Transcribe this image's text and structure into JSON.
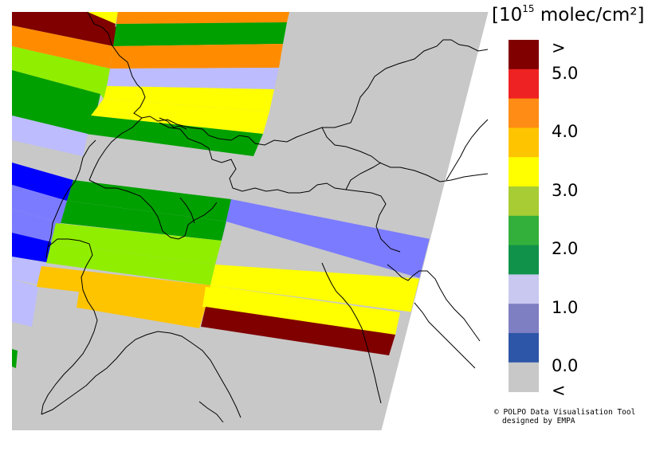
{
  "legend": {
    "title_prefix": "[10",
    "title_exponent": "15",
    "title_suffix": " molec/cm²]",
    "classes": [
      {
        "label": ">",
        "color": "#800000"
      },
      {
        "label": "",
        "color": "#ee2222"
      },
      {
        "label": "",
        "color": "#ff8c14"
      },
      {
        "label": "",
        "color": "#ffc400"
      },
      {
        "label": "",
        "color": "#ffff00"
      },
      {
        "label": "",
        "color": "#a8cc33"
      },
      {
        "label": "",
        "color": "#33b03c"
      },
      {
        "label": "",
        "color": "#11924a"
      },
      {
        "label": "",
        "color": "#c8c8f0"
      },
      {
        "label": "",
        "color": "#7e7ec2"
      },
      {
        "label": "",
        "color": "#2e56a8"
      },
      {
        "label": "<",
        "color": "#c8c8c8"
      }
    ],
    "tick_labels": [
      "5.0",
      "4.0",
      "3.0",
      "2.0",
      "1.0",
      "0.0"
    ]
  },
  "credit": {
    "line1": "© POLPO Data Visualisation Tool",
    "line2": "designed by EMPA"
  },
  "map": {
    "background_color": "#c8c8c8",
    "swaths": [
      {
        "color": "#800000"
      },
      {
        "color": "#ff8c00"
      },
      {
        "color": "#ffff00"
      },
      {
        "color": "#7b7bff"
      },
      {
        "color": "#00a000"
      },
      {
        "color": "#ffc400"
      },
      {
        "color": "#90ee00"
      },
      {
        "color": "#0000ff"
      }
    ]
  }
}
